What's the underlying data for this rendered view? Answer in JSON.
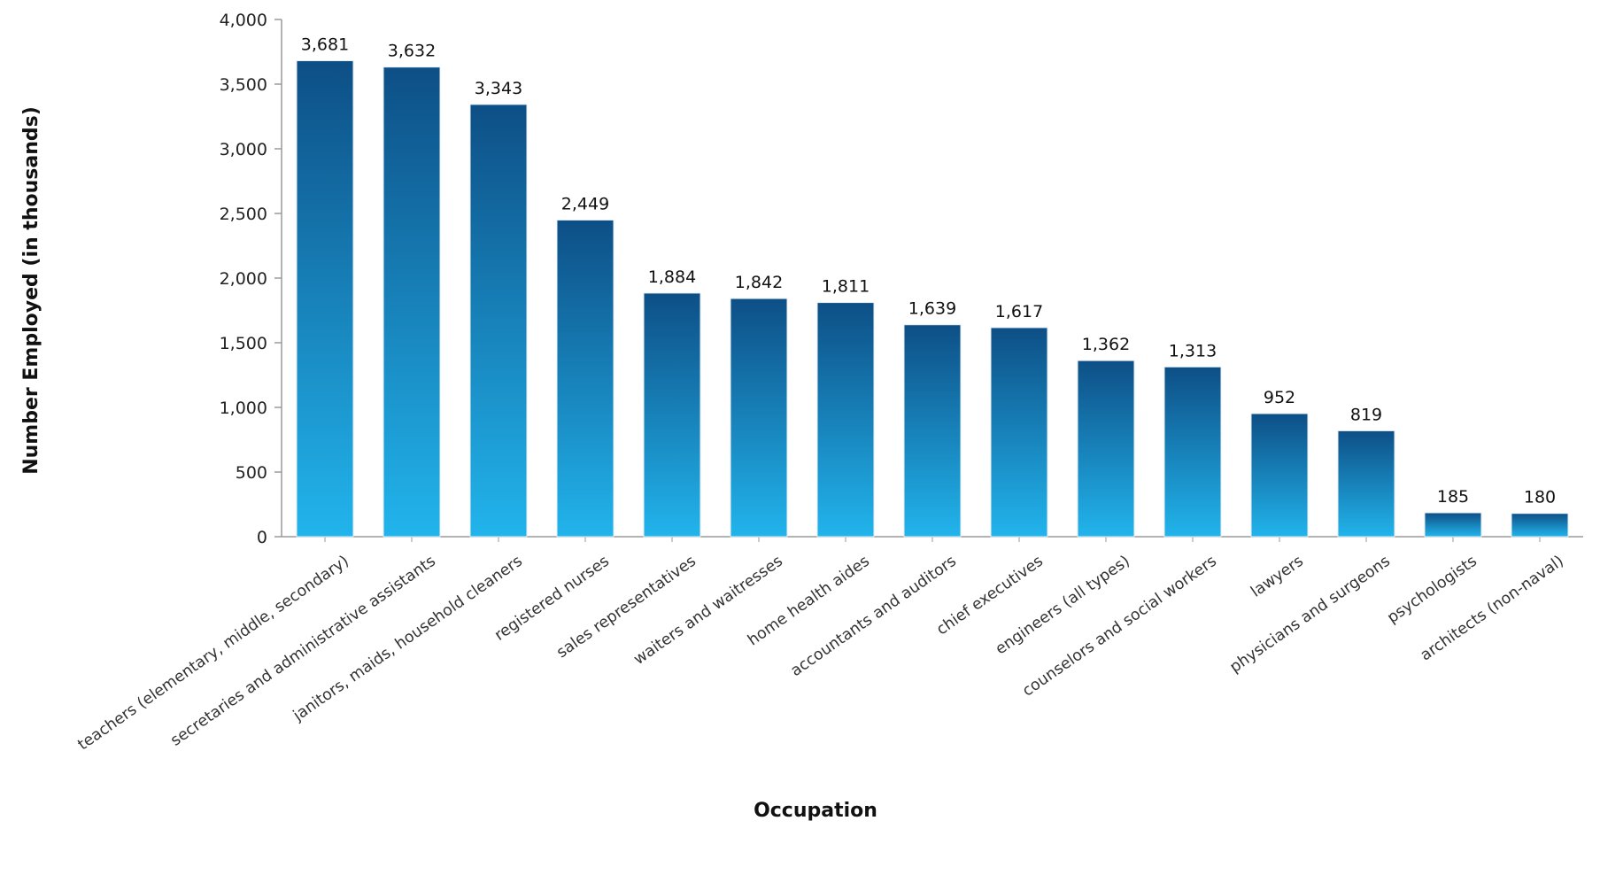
{
  "chart_data": {
    "type": "bar",
    "title": "",
    "xlabel": "Occupation",
    "ylabel": "Number Employed (in thousands)",
    "ylim": [
      0,
      4000
    ],
    "yticks": [
      0,
      500,
      1000,
      1500,
      2000,
      2500,
      3000,
      3500,
      4000
    ],
    "ytick_labels": [
      "0",
      "500",
      "1,000",
      "1,500",
      "2,000",
      "2,500",
      "3,000",
      "3,500",
      "4,000"
    ],
    "categories": [
      "teachers (elementary, middle, secondary)",
      "secretaries and administrative assistants",
      "janitors, maids, household cleaners",
      "registered nurses",
      "sales representatives",
      "waiters and waitresses",
      "home health aides",
      "accountants and auditors",
      "chief executives",
      "engineers (all types)",
      "counselors and social workers",
      "lawyers",
      "physicians and surgeons",
      "psychologists",
      "architects (non-naval)"
    ],
    "values": [
      3681,
      3632,
      3343,
      2449,
      1884,
      1842,
      1811,
      1639,
      1617,
      1362,
      1313,
      952,
      819,
      185,
      180
    ],
    "value_labels": [
      "3,681",
      "3,632",
      "3,343",
      "2,449",
      "1,884",
      "1,842",
      "1,811",
      "1,639",
      "1,617",
      "1,362",
      "1,313",
      "952",
      "819",
      "185",
      "180"
    ],
    "grid": false,
    "legend": "none",
    "colors": {
      "bar_top": "#0d4f86",
      "bar_bottom": "#22b4ec",
      "axis": "#9a9a9a"
    }
  }
}
